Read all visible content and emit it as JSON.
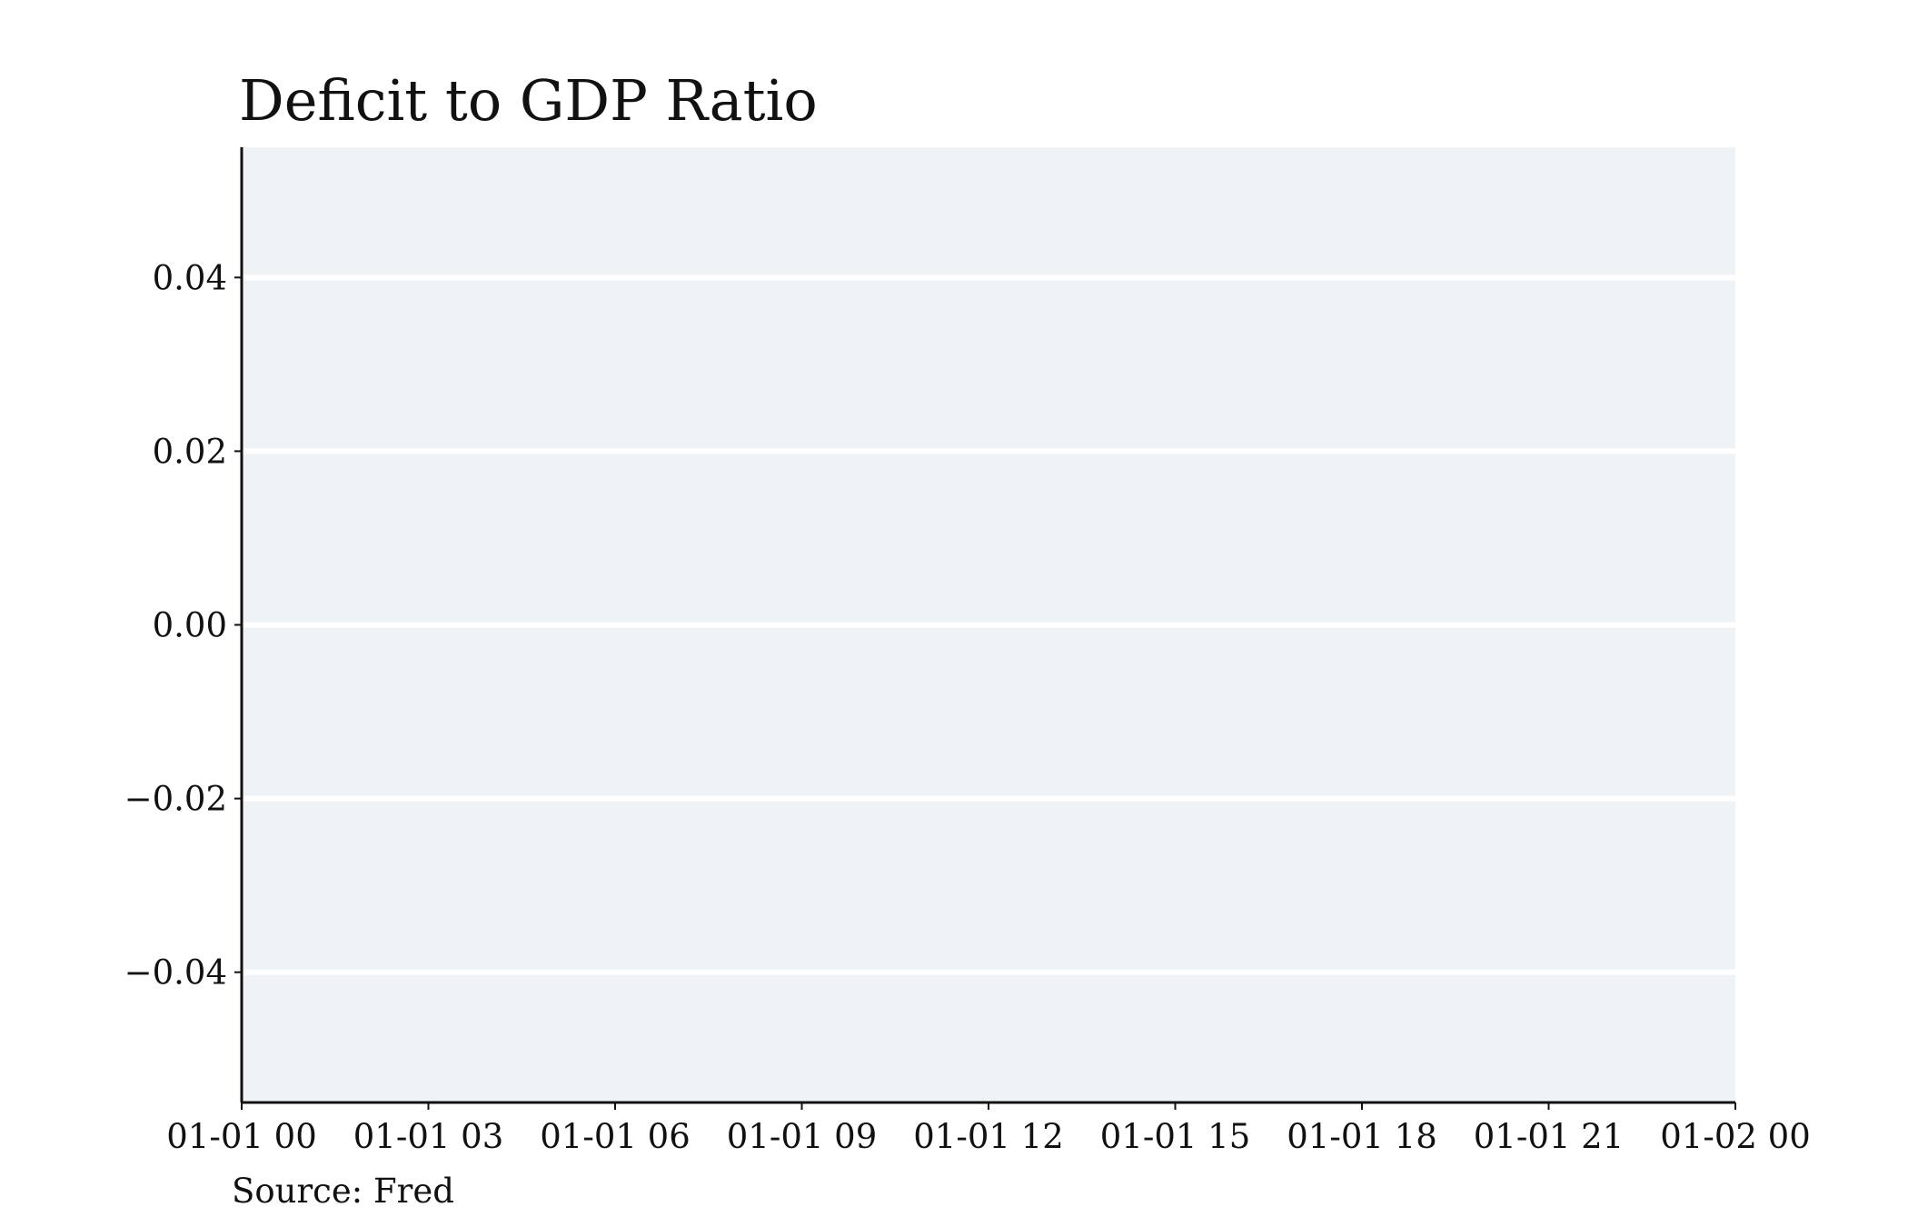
{
  "chart_data": {
    "type": "line",
    "title": "Deficit to GDP Ratio",
    "source": "Source: Fred",
    "xlabel": "",
    "ylabel": "",
    "x_tick_labels": [
      "01-01 00",
      "01-01 03",
      "01-01 06",
      "01-01 09",
      "01-01 12",
      "01-01 15",
      "01-01 18",
      "01-01 21",
      "01-02 00"
    ],
    "y_tick_labels": [
      "0.04",
      "0.02",
      "0.00",
      "−0.02",
      "−0.04"
    ],
    "y_ticks": [
      0.04,
      0.02,
      0.0,
      -0.02,
      -0.04
    ],
    "ylim": [
      -0.055,
      0.055
    ],
    "x": [],
    "values": [],
    "grid": "horizontal",
    "colors": {
      "plot_background": "#f0f3f6",
      "gridline": "#ffffff",
      "axis": "#111111",
      "text": "#111111"
    }
  }
}
